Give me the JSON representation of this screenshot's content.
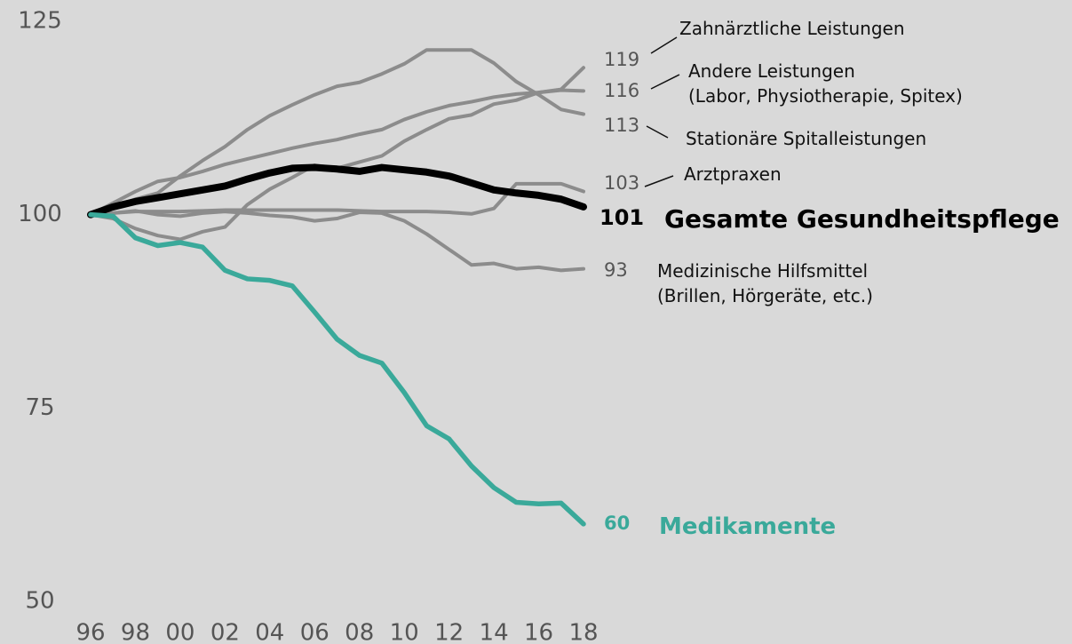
{
  "chart_data": {
    "type": "line",
    "categories": [
      "96",
      null,
      "98",
      null,
      "00",
      null,
      "02",
      null,
      "04",
      null,
      "06",
      null,
      "08",
      null,
      "10",
      null,
      "12",
      null,
      "14",
      null,
      "16",
      null,
      "18"
    ],
    "ylim": [
      50,
      125
    ],
    "yticks": [
      50,
      75,
      100,
      125
    ],
    "grid": false,
    "series": [
      {
        "name": "Zahnärztliche Leistungen",
        "color": "#8c8c8c",
        "values": [
          100,
          99.5,
          98.2,
          97.3,
          96.8,
          97.8,
          98.4,
          101.3,
          103.3,
          104.8,
          106.4,
          106,
          106.8,
          107.6,
          109.5,
          111,
          112.4,
          112.9,
          114.3,
          114.8,
          115.8,
          116.2,
          119
        ]
      },
      {
        "name": "Andere Leistungen\n(Labor, Physiotherapie, Spitex)",
        "color": "#8c8c8c",
        "values": [
          100,
          101.5,
          103,
          104.3,
          104.8,
          105.6,
          106.5,
          107.2,
          107.9,
          108.6,
          109.2,
          109.7,
          110.4,
          111,
          112.3,
          113.3,
          114.1,
          114.6,
          115.2,
          115.6,
          115.8,
          116.1,
          116
        ]
      },
      {
        "name": "Stationäre Spitalleistungen",
        "color": "#8c8c8c",
        "values": [
          100,
          101,
          102,
          102.8,
          105,
          107,
          108.8,
          111,
          112.8,
          114.2,
          115.5,
          116.6,
          117.1,
          118.2,
          119.5,
          121.3,
          121.3,
          121.3,
          119.6,
          117.2,
          115.5,
          113.6,
          113
        ]
      },
      {
        "name": "Arztpraxen",
        "color": "#8c8c8c",
        "values": [
          100,
          100.2,
          100.4,
          100.4,
          100.4,
          100.5,
          100.6,
          100.6,
          100.6,
          100.6,
          100.6,
          100.6,
          100.5,
          100.4,
          100.4,
          100.4,
          100.3,
          100.1,
          100.8,
          104,
          104,
          104,
          103
        ]
      },
      {
        "name": "Medizinische Hilfsmittel\n(Brillen, Hörgeräte, etc.)",
        "color": "#8c8c8c",
        "values": [
          100,
          100.2,
          100.5,
          100,
          99.8,
          100.2,
          100.4,
          100.2,
          99.9,
          99.7,
          99.2,
          99.5,
          100.3,
          100.2,
          99.2,
          97.5,
          95.5,
          93.5,
          93.7,
          93,
          93.2,
          92.8,
          93
        ]
      },
      {
        "name": "Gesamte Gesundheitspflege",
        "color": "#000000",
        "values": [
          100,
          101,
          101.7,
          102.2,
          102.7,
          103.2,
          103.7,
          104.6,
          105.4,
          106,
          106.1,
          105.9,
          105.6,
          106.1,
          105.8,
          105.5,
          105,
          104.1,
          103.2,
          102.8,
          102.5,
          102,
          101
        ]
      },
      {
        "name": "Medikamente",
        "color": "#3aa99a",
        "values": [
          100,
          99.8,
          97,
          96,
          96.4,
          95.8,
          92.8,
          91.7,
          91.5,
          90.8,
          87.4,
          83.9,
          81.8,
          80.8,
          77,
          72.7,
          71,
          67.5,
          64.7,
          62.8,
          62.6,
          62.7,
          60
        ]
      }
    ]
  }
}
